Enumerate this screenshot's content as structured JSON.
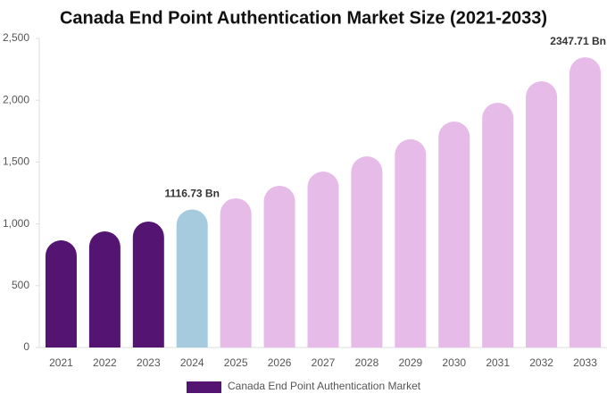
{
  "chart_data": {
    "type": "bar",
    "title": "Canada End Point Authentication Market Size (2021-2033)",
    "categories": [
      "2021",
      "2022",
      "2023",
      "2024",
      "2025",
      "2026",
      "2027",
      "2028",
      "2029",
      "2030",
      "2031",
      "2032",
      "2033"
    ],
    "series": [
      {
        "name": "Canada End Point Authentication Market",
        "color": "#541472",
        "colors": [
          "#541472",
          "#541472",
          "#541472",
          "#a6cbdf",
          "#e6bbe8",
          "#e6bbe8",
          "#e6bbe8",
          "#e6bbe8",
          "#e6bbe8",
          "#e6bbe8",
          "#e6bbe8",
          "#e6bbe8",
          "#e6bbe8"
        ],
        "values": [
          867,
          939,
          1019,
          1116.73,
          1207,
          1308,
          1423,
          1546,
          1684,
          1828,
          1980,
          2153,
          2347.71
        ],
        "value_labels": [
          null,
          null,
          null,
          "1116.73 Bn",
          null,
          null,
          null,
          null,
          null,
          null,
          null,
          null,
          "2347.71 Bn"
        ]
      }
    ],
    "ylim": [
      0,
      2500
    ],
    "yticks": [
      0,
      500,
      {
        "value": 1000,
        "label": "1,000"
      },
      {
        "value": 1500,
        "label": "1,500"
      },
      {
        "value": 2000,
        "label": "2,000"
      },
      {
        "value": 2500,
        "label": "2,500"
      }
    ],
    "grid": false
  }
}
